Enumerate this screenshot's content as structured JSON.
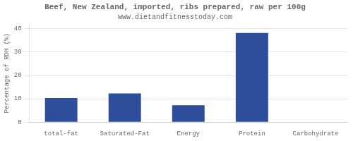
{
  "chart_data": {
    "type": "bar",
    "title": "Beef, New Zealand, imported, ribs prepared, raw per 100g",
    "subtitle": "www.dietandfitnesstoday.com",
    "categories": [
      "total-fat",
      "Saturated-Fat",
      "Energy",
      "Protein",
      "Carbohydrate"
    ],
    "values": [
      10.3,
      12.3,
      7.2,
      38.2,
      0
    ],
    "color": "#2e4d9b",
    "ylabel": "Percentage of RDH (%)",
    "ylim": [
      0,
      42
    ],
    "yticks": [
      0,
      10,
      20,
      30,
      40
    ],
    "grid": true
  }
}
